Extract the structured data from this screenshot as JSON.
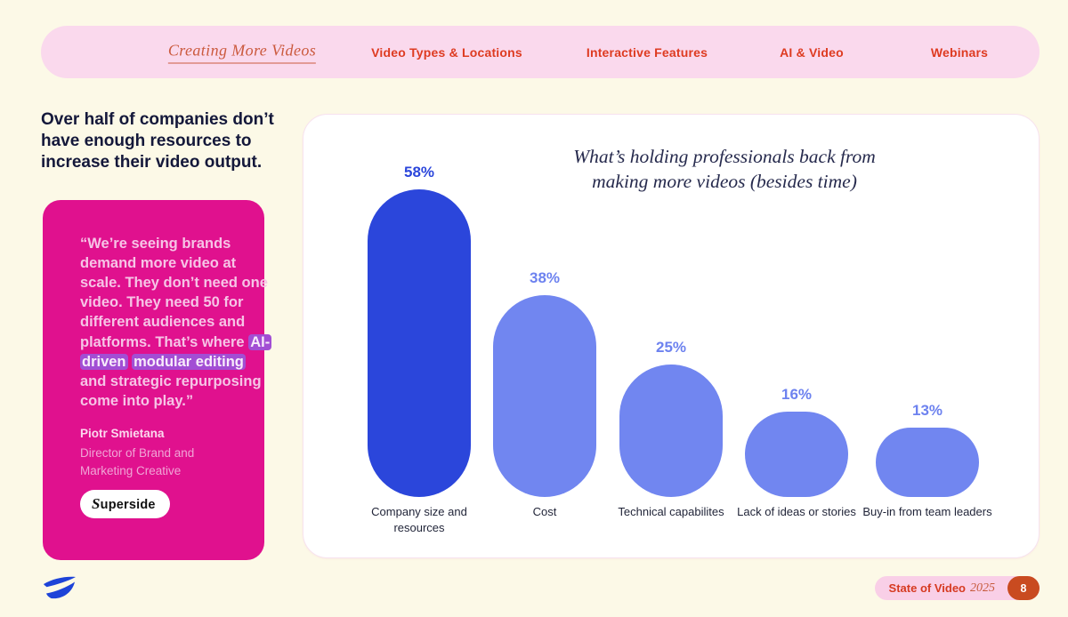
{
  "nav": {
    "tabs": [
      {
        "label": "Creating More Videos",
        "active": true
      },
      {
        "label": "Video Types & Locations",
        "active": false
      },
      {
        "label": "Interactive Features",
        "active": false
      },
      {
        "label": "AI & Video",
        "active": false
      },
      {
        "label": "Webinars",
        "active": false
      }
    ]
  },
  "sidebar": {
    "heading": "Over half of companies don’t have enough resources to increase their video output.",
    "quote": {
      "segments": [
        {
          "text": "“We’re seeing brands demand more video at scale. They don’t need one video. They need 50 for different audiences and platforms. That’s where ",
          "highlight": false
        },
        {
          "text": "AI-driven",
          "highlight": true
        },
        {
          "text": " ",
          "highlight": false
        },
        {
          "text": "modular editing",
          "highlight": true
        },
        {
          "text": " and strategic repurposing come into play.”",
          "highlight": false
        }
      ],
      "author": "Piotr Smietana",
      "author_title": "Director of Brand and Marketing Creative",
      "brand": "Superside"
    }
  },
  "chart_data": {
    "type": "bar",
    "title": "What’s holding professionals back from making more videos (besides time)",
    "title_lines": [
      "What’s holding professionals back from",
      "making more videos (besides time)"
    ],
    "categories": [
      "Company size and resources",
      "Cost",
      "Technical capabilites",
      "Lack of ideas or stories",
      "Buy-in from team leaders"
    ],
    "values": [
      58,
      38,
      25,
      16,
      13
    ],
    "value_labels": [
      "58%",
      "38%",
      "25%",
      "16%",
      "13%"
    ],
    "bar_colors": [
      "#2B46DB",
      "#7186F0",
      "#7186F0",
      "#7186F0",
      "#7186F0"
    ],
    "value_label_colors": [
      "#2B46DB",
      "#6D82EF",
      "#6D82EF",
      "#6D82EF",
      "#6D82EF"
    ],
    "ylim": [
      0,
      60
    ],
    "grid": false,
    "legend": false,
    "xlabel": "",
    "ylabel": ""
  },
  "footer": {
    "report_label": "State of Video",
    "report_year": "2025",
    "page_number": "8",
    "brand_icon": "vidyard-logo",
    "brand_color": "#1D43D8"
  },
  "colors": {
    "page_bg": "#FCF9E7",
    "nav_pill_bg": "#FAD9ED",
    "nav_text": "#DE3B21",
    "nav_active_text": "#CB5A3E",
    "headline_text": "#14183A",
    "quote_card_bg": "#E0118E",
    "quote_text": "#F6C4E6",
    "quote_highlight_bg": "#A24ED4",
    "chart_card_bg": "#FFFFFF",
    "bar_primary": "#2B46DB",
    "bar_secondary": "#7186F0",
    "footer_pill_bg": "#F9CFE7",
    "footer_badge_bg": "#C94B20"
  }
}
